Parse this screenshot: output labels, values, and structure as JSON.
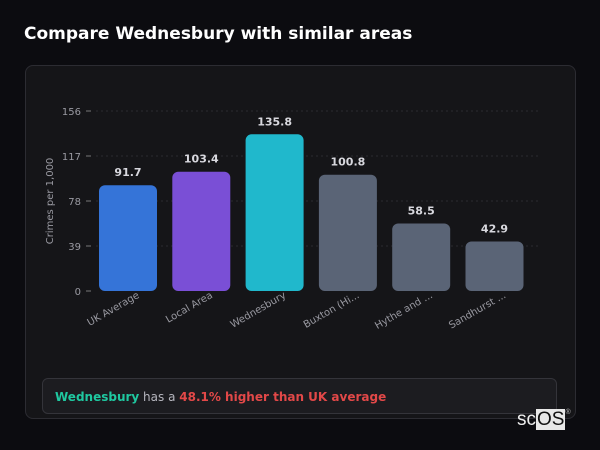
{
  "title": "Compare Wednesbury with similar areas",
  "chart_data": {
    "type": "bar",
    "categories": [
      "UK Average",
      "Local Area",
      "Wednesbury",
      "Buxton (Hi...",
      "Hythe and ...",
      "Sandhurst ..."
    ],
    "values": [
      91.7,
      103.4,
      135.8,
      100.8,
      58.5,
      42.9
    ],
    "value_labels": [
      "91.7",
      "103.4",
      "135.8",
      "100.8",
      "58.5",
      "42.9"
    ],
    "colors": [
      "#3574d8",
      "#7a4fd6",
      "#20b8cc",
      "#5a6476",
      "#5a6476",
      "#5a6476"
    ],
    "ylabel": "Crimes per 1,000",
    "xlabel": "",
    "ylim": [
      0,
      156
    ],
    "yticks": [
      0,
      39,
      78,
      117,
      156
    ],
    "grid": true
  },
  "insight": {
    "area": "Wednesbury",
    "middle": " has a ",
    "comparison": "48.1% higher than UK average"
  },
  "watermark": {
    "prefix": "sc",
    "boxed": "OS",
    "mark": "®"
  }
}
